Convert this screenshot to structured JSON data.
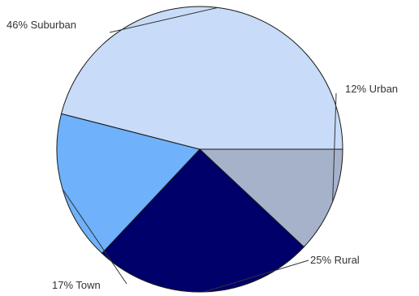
{
  "chart_data": {
    "type": "pie",
    "title": "",
    "slices": [
      {
        "label": "Urban",
        "value": 12,
        "display": "12% Urban",
        "color": "#a5b2c9"
      },
      {
        "label": "Rural",
        "value": 25,
        "display": "25% Rural",
        "color": "#00006b"
      },
      {
        "label": "Town",
        "value": 17,
        "display": "17% Town",
        "color": "#6fb1fb"
      },
      {
        "label": "Suburban",
        "value": 46,
        "display": "46% Suburban",
        "color": "#c8dcf9"
      }
    ],
    "start_angle_deg": 0,
    "direction": "clockwise",
    "labels_outside": true
  }
}
